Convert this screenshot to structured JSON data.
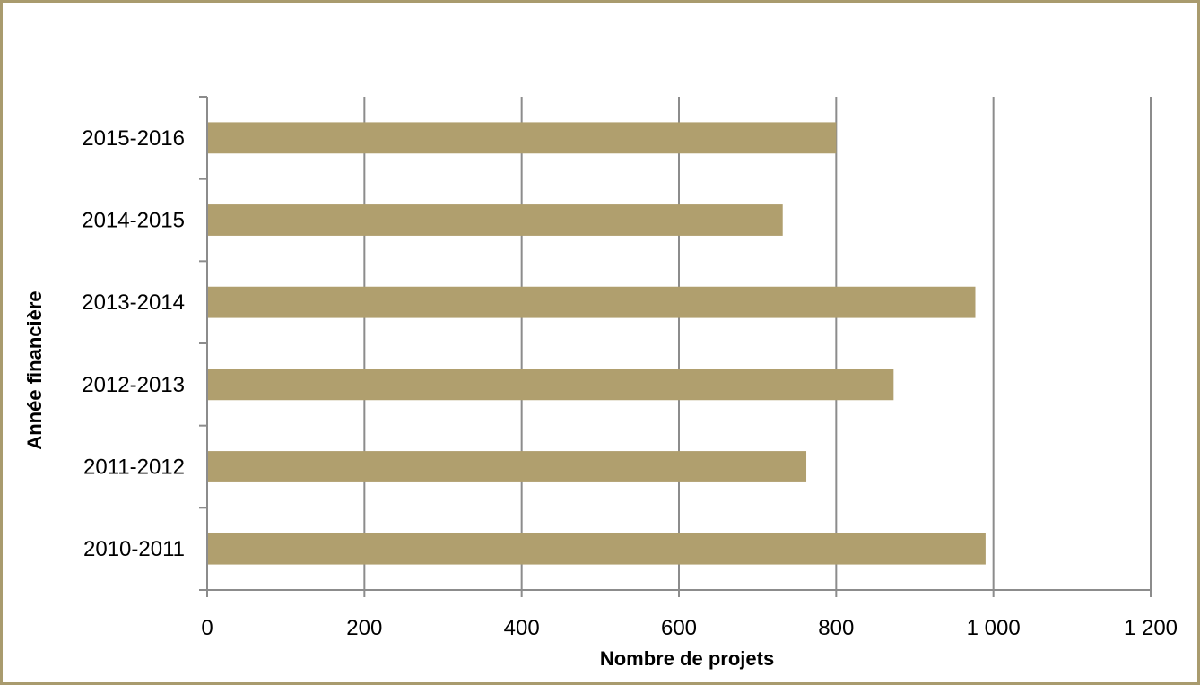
{
  "chart_data": {
    "type": "bar",
    "orientation": "horizontal",
    "categories": [
      "2015-2016",
      "2014-2015",
      "2013-2014",
      "2012-2013",
      "2011-2012",
      "2010-2011"
    ],
    "values": [
      800,
      732,
      977,
      873,
      762,
      990
    ],
    "xlabel": "Nombre de projets",
    "ylabel": "Année financière",
    "xlim": [
      0,
      1200
    ],
    "xticks": [
      0,
      200,
      400,
      600,
      800,
      1000,
      1200
    ],
    "xtick_labels": [
      "0",
      "200",
      "400",
      "600",
      "800",
      "1 000",
      "1 200"
    ],
    "grid": "vertical gridlines on",
    "legend": "none",
    "colors": {
      "bar": "#b09f6e",
      "grid": "#8c8c8c",
      "border": "#a99b6e"
    }
  }
}
